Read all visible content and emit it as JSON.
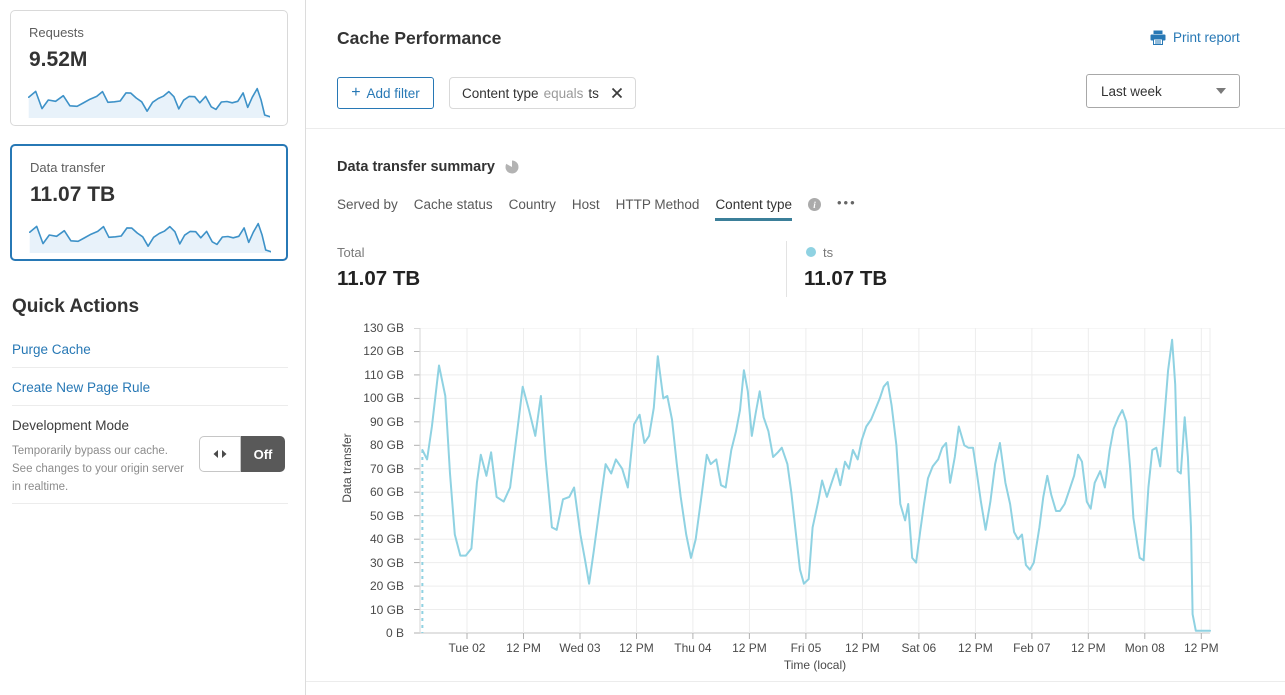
{
  "colors": {
    "accent_blue": "#2778b5",
    "sparkline_stroke": "#3e92c8",
    "sparkline_fill": "#e8f2fa",
    "chart_line": "#8fd2e2",
    "tab_underline": "#3b7f99",
    "toggle_off_bg": "#595959"
  },
  "sidebar": {
    "requests_card": {
      "label": "Requests",
      "value": "9.52M"
    },
    "data_transfer_card": {
      "label": "Data transfer",
      "value": "11.07 TB",
      "selected": true
    },
    "quick_actions": {
      "title": "Quick Actions",
      "links": [
        "Purge Cache",
        "Create New Page Rule"
      ],
      "development_mode": {
        "label": "Development Mode",
        "description": "Temporarily bypass our cache. See changes to your origin server in realtime.",
        "toggle_state": "Off"
      }
    }
  },
  "header": {
    "title": "Cache Performance",
    "print_label": "Print report"
  },
  "filters": {
    "add_filter_plus": "+",
    "add_filter_label": "Add filter",
    "chips": [
      {
        "field": "Content type",
        "operator": "equals",
        "value": "ts"
      }
    ],
    "time_range": "Last week"
  },
  "summary": {
    "title": "Data transfer summary",
    "tabs": [
      "Served by",
      "Cache status",
      "Country",
      "Host",
      "HTTP Method",
      "Content type"
    ],
    "active_tab": "Content type",
    "more_label": "•••",
    "total": {
      "label": "Total",
      "value": "11.07 TB"
    },
    "legend": [
      {
        "name": "ts",
        "value": "11.07 TB",
        "color": "#8fd2e2"
      }
    ]
  },
  "chart_data": {
    "type": "line",
    "title": "Data transfer summary",
    "xlabel": "Time (local)",
    "ylabel": "Data transfer",
    "unit": "GB",
    "ylim": [
      0,
      130
    ],
    "grid": true,
    "y_tick_labels": [
      "130 GB",
      "120 GB",
      "110 GB",
      "100 GB",
      "90 GB",
      "80 GB",
      "70 GB",
      "60 GB",
      "50 GB",
      "40 GB",
      "30 GB",
      "20 GB",
      "10 GB",
      "0 B"
    ],
    "x_tick_labels": [
      "Tue 02",
      "12 PM",
      "Wed 03",
      "12 PM",
      "Thu 04",
      "12 PM",
      "Fri 05",
      "12 PM",
      "Sat 06",
      "12 PM",
      "Feb 07",
      "12 PM",
      "Mon 08",
      "12 PM"
    ],
    "x_axis": {
      "start_frac": 0.0595,
      "step_frac": 0.0715
    },
    "series": [
      {
        "name": "ts",
        "color": "#8fd2e2",
        "dashed_leadin": true,
        "points": [
          [
            0.003,
            78
          ],
          [
            0.009,
            74
          ],
          [
            0.015,
            88
          ],
          [
            0.024,
            114
          ],
          [
            0.032,
            101
          ],
          [
            0.038,
            68
          ],
          [
            0.044,
            42
          ],
          [
            0.051,
            33
          ],
          [
            0.058,
            33
          ],
          [
            0.065,
            36
          ],
          [
            0.072,
            64
          ],
          [
            0.077,
            76
          ],
          [
            0.084,
            67
          ],
          [
            0.09,
            77
          ],
          [
            0.097,
            58
          ],
          [
            0.106,
            56
          ],
          [
            0.114,
            62
          ],
          [
            0.123,
            86
          ],
          [
            0.13,
            105
          ],
          [
            0.138,
            95
          ],
          [
            0.146,
            84
          ],
          [
            0.153,
            101
          ],
          [
            0.159,
            74
          ],
          [
            0.167,
            45
          ],
          [
            0.173,
            44
          ],
          [
            0.181,
            57
          ],
          [
            0.189,
            58
          ],
          [
            0.195,
            62
          ],
          [
            0.203,
            42
          ],
          [
            0.209,
            31
          ],
          [
            0.214,
            21
          ],
          [
            0.22,
            35
          ],
          [
            0.228,
            55
          ],
          [
            0.235,
            72
          ],
          [
            0.242,
            68
          ],
          [
            0.248,
            74
          ],
          [
            0.256,
            70
          ],
          [
            0.263,
            62
          ],
          [
            0.271,
            89
          ],
          [
            0.278,
            93
          ],
          [
            0.284,
            81
          ],
          [
            0.29,
            84
          ],
          [
            0.296,
            96
          ],
          [
            0.301,
            118
          ],
          [
            0.308,
            100
          ],
          [
            0.313,
            101
          ],
          [
            0.319,
            91
          ],
          [
            0.325,
            72
          ],
          [
            0.33,
            58
          ],
          [
            0.337,
            42
          ],
          [
            0.343,
            32
          ],
          [
            0.349,
            40
          ],
          [
            0.357,
            60
          ],
          [
            0.363,
            76
          ],
          [
            0.368,
            72
          ],
          [
            0.375,
            74
          ],
          [
            0.381,
            63
          ],
          [
            0.387,
            62
          ],
          [
            0.394,
            78
          ],
          [
            0.4,
            86
          ],
          [
            0.405,
            95
          ],
          [
            0.41,
            112
          ],
          [
            0.415,
            103
          ],
          [
            0.42,
            84
          ],
          [
            0.425,
            94
          ],
          [
            0.43,
            103
          ],
          [
            0.435,
            92
          ],
          [
            0.441,
            86
          ],
          [
            0.447,
            75
          ],
          [
            0.453,
            77
          ],
          [
            0.458,
            79
          ],
          [
            0.465,
            72
          ],
          [
            0.47,
            60
          ],
          [
            0.476,
            42
          ],
          [
            0.481,
            27
          ],
          [
            0.486,
            21
          ],
          [
            0.492,
            23
          ],
          [
            0.497,
            45
          ],
          [
            0.504,
            56
          ],
          [
            0.509,
            65
          ],
          [
            0.515,
            58
          ],
          [
            0.52,
            63
          ],
          [
            0.527,
            70
          ],
          [
            0.532,
            63
          ],
          [
            0.538,
            73
          ],
          [
            0.543,
            70
          ],
          [
            0.548,
            78
          ],
          [
            0.554,
            74
          ],
          [
            0.559,
            82
          ],
          [
            0.565,
            88
          ],
          [
            0.571,
            91
          ],
          [
            0.576,
            95
          ],
          [
            0.582,
            100
          ],
          [
            0.587,
            105
          ],
          [
            0.592,
            107
          ],
          [
            0.597,
            97
          ],
          [
            0.603,
            80
          ],
          [
            0.608,
            55
          ],
          [
            0.614,
            48
          ],
          [
            0.618,
            55
          ],
          [
            0.623,
            32
          ],
          [
            0.628,
            30
          ],
          [
            0.633,
            43
          ],
          [
            0.638,
            55
          ],
          [
            0.643,
            66
          ],
          [
            0.649,
            71
          ],
          [
            0.656,
            74
          ],
          [
            0.661,
            79
          ],
          [
            0.666,
            81
          ],
          [
            0.671,
            64
          ],
          [
            0.677,
            75
          ],
          [
            0.682,
            88
          ],
          [
            0.689,
            80
          ],
          [
            0.694,
            79
          ],
          [
            0.7,
            79
          ],
          [
            0.705,
            68
          ],
          [
            0.71,
            56
          ],
          [
            0.716,
            44
          ],
          [
            0.722,
            56
          ],
          [
            0.728,
            72
          ],
          [
            0.734,
            81
          ],
          [
            0.741,
            64
          ],
          [
            0.747,
            55
          ],
          [
            0.752,
            43
          ],
          [
            0.757,
            40
          ],
          [
            0.762,
            42
          ],
          [
            0.767,
            29
          ],
          [
            0.772,
            27
          ],
          [
            0.777,
            30
          ],
          [
            0.784,
            45
          ],
          [
            0.789,
            58
          ],
          [
            0.794,
            67
          ],
          [
            0.799,
            59
          ],
          [
            0.805,
            52
          ],
          [
            0.81,
            52
          ],
          [
            0.816,
            55
          ],
          [
            0.822,
            61
          ],
          [
            0.828,
            67
          ],
          [
            0.833,
            76
          ],
          [
            0.838,
            73
          ],
          [
            0.844,
            56
          ],
          [
            0.849,
            53
          ],
          [
            0.854,
            64
          ],
          [
            0.861,
            69
          ],
          [
            0.867,
            62
          ],
          [
            0.873,
            78
          ],
          [
            0.878,
            87
          ],
          [
            0.884,
            92
          ],
          [
            0.889,
            95
          ],
          [
            0.894,
            90
          ],
          [
            0.899,
            70
          ],
          [
            0.903,
            49
          ],
          [
            0.908,
            38
          ],
          [
            0.911,
            32
          ],
          [
            0.916,
            31
          ],
          [
            0.922,
            62
          ],
          [
            0.927,
            78
          ],
          [
            0.932,
            79
          ],
          [
            0.937,
            71
          ],
          [
            0.942,
            91
          ],
          [
            0.947,
            112
          ],
          [
            0.952,
            125
          ],
          [
            0.956,
            106
          ],
          [
            0.959,
            69
          ],
          [
            0.963,
            68
          ],
          [
            0.968,
            92
          ],
          [
            0.972,
            75
          ],
          [
            0.976,
            45
          ],
          [
            0.978,
            8
          ],
          [
            0.982,
            1
          ],
          [
            0.989,
            1
          ],
          [
            0.995,
            1
          ],
          [
            1,
            1
          ]
        ]
      }
    ]
  }
}
